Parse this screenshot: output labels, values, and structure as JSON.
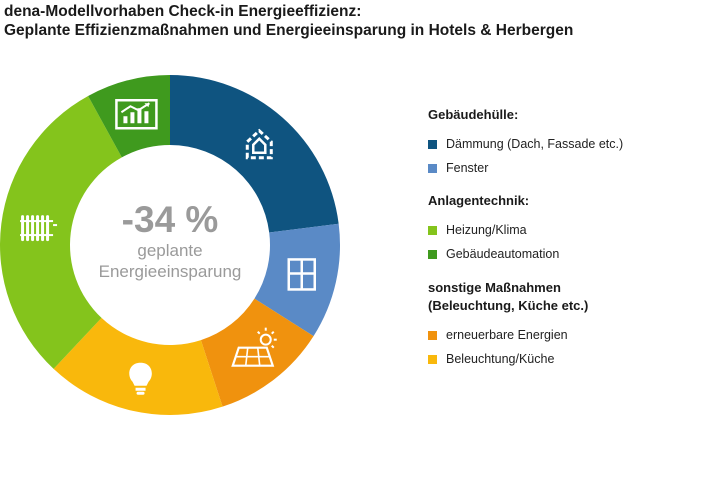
{
  "title_lines": [
    "dena-Modellvorhaben Check-in Energieeffizienz:",
    "Geplante Effizienzmaßnahmen und Energieeinsparung in Hotels & Herbergen"
  ],
  "center": {
    "value": "-34 %",
    "line1": "geplante",
    "line2": "Energieeinsparung"
  },
  "legend_groups": [
    {
      "title_lines": [
        "Gebäudehülle:"
      ],
      "items": [
        {
          "label": "Dämmung (Dach, Fassade etc.)",
          "color": "#0f5480"
        },
        {
          "label": "Fenster",
          "color": "#5a8ac6"
        }
      ]
    },
    {
      "title_lines": [
        "Anlagentechnik:"
      ],
      "items": [
        {
          "label": "Heizung/Klima",
          "color": "#84c41c"
        },
        {
          "label": "Gebäudeautomation",
          "color": "#3f9a1e"
        }
      ]
    },
    {
      "title_lines": [
        "sonstige Maßnahmen",
        "(Beleuchtung, Küche etc.)"
      ],
      "items": [
        {
          "label": "erneuerbare Energien",
          "color": "#f0920e"
        },
        {
          "label": "Beleuchtung/Küche",
          "color": "#f9b80c"
        }
      ]
    }
  ],
  "chart_data": {
    "type": "pie",
    "style": "donut",
    "categories": [
      "Dämmung (Dach, Fassade etc.)",
      "Fenster",
      "erneuerbare Energien",
      "Beleuchtung/Küche",
      "Heizung/Klima",
      "Gebäudeautomation"
    ],
    "values": [
      23,
      11,
      11,
      17,
      30,
      8
    ],
    "colors": [
      "#0f5480",
      "#5a8ac6",
      "#f0920e",
      "#f9b80c",
      "#84c41c",
      "#3f9a1e"
    ],
    "icons": [
      "house-insulation-icon",
      "window-icon",
      "solar-panel-icon",
      "lightbulb-icon",
      "radiator-icon",
      "monitor-chart-icon"
    ],
    "start_angle_deg": 0,
    "direction": "clockwise",
    "legend_position": "right"
  }
}
